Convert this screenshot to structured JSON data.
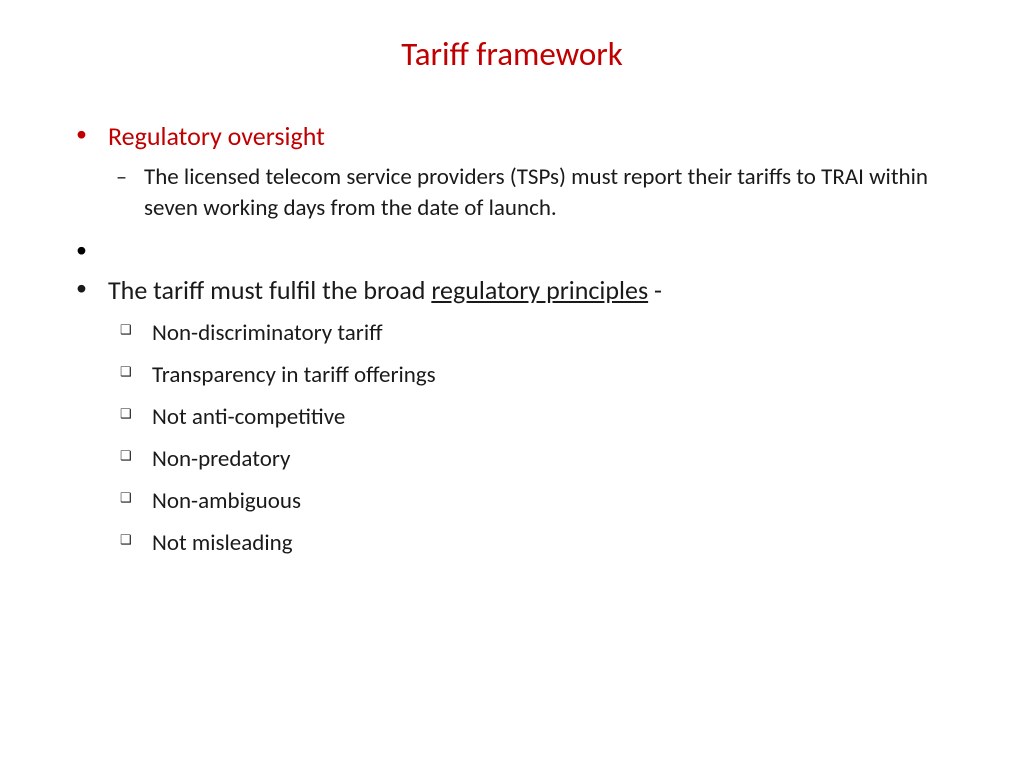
{
  "colors": {
    "title": "#c00000",
    "heading": "#c00000",
    "bullet_red": "#c00000",
    "body": "#1a1a1a",
    "background": "#ffffff"
  },
  "typography": {
    "title_fontsize": 33,
    "lvl1_fontsize": 26,
    "lvl2_fontsize": 23,
    "lvl3_fontsize": 23,
    "font_family": "Calibri"
  },
  "title": "Tariff framework",
  "bullets": {
    "item1": {
      "heading": "Regulatory oversight",
      "sub": "The licensed telecom service providers (TSPs) must report their tariffs to TRAI within seven working days from the date of launch."
    },
    "item2": {
      "text_before": "The tariff must fulfil the broad ",
      "text_underlined": "regulatory principles",
      "text_after": " -",
      "principles": [
        "Non-discriminatory tariff",
        "Transparency in tariff offerings",
        "Not anti-competitive",
        "Non-predatory",
        "Non-ambiguous",
        "Not misleading"
      ]
    }
  }
}
